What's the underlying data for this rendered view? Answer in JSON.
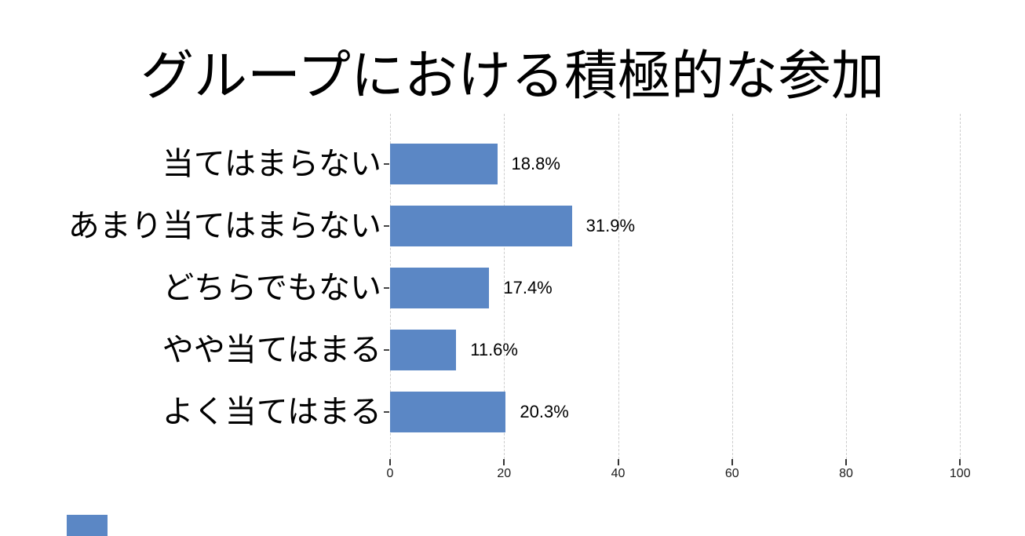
{
  "chart_data": {
    "type": "bar",
    "orientation": "horizontal",
    "title": "グループにおける積極的な参加",
    "categories": [
      "当てはまらない",
      "あまり当てはまらない",
      "どちらでもない",
      "やや当てはまる",
      "よく当てはまる"
    ],
    "values": [
      18.8,
      31.9,
      17.4,
      11.6,
      20.3
    ],
    "value_labels": [
      "18.8%",
      "31.9%",
      "17.4%",
      "11.6%",
      "20.3%"
    ],
    "x_ticks": [
      "0",
      "20",
      "40",
      "60",
      "80",
      "100"
    ],
    "xlim": [
      0,
      100
    ],
    "bar_color": "#5b87c5",
    "grid": {
      "axis": "x",
      "style": "dashed",
      "color": "#cccccc"
    },
    "legend_swatch": {
      "visible": true,
      "color": "#5b87c5"
    }
  }
}
